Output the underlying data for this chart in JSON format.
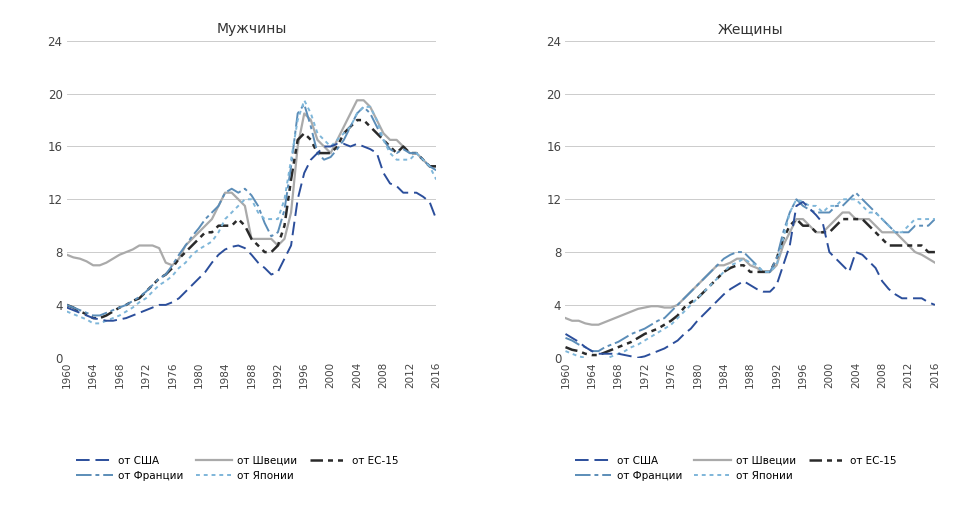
{
  "years": [
    1960,
    1961,
    1962,
    1963,
    1964,
    1965,
    1966,
    1967,
    1968,
    1969,
    1970,
    1971,
    1972,
    1973,
    1974,
    1975,
    1976,
    1977,
    1978,
    1979,
    1980,
    1981,
    1982,
    1983,
    1984,
    1985,
    1986,
    1987,
    1988,
    1989,
    1990,
    1991,
    1992,
    1993,
    1994,
    1995,
    1996,
    1997,
    1998,
    1999,
    2000,
    2001,
    2002,
    2003,
    2004,
    2005,
    2006,
    2007,
    2008,
    2009,
    2010,
    2011,
    2012,
    2013,
    2014,
    2015,
    2016
  ],
  "men": {
    "usa": [
      3.8,
      3.6,
      3.4,
      3.2,
      3.0,
      2.9,
      2.8,
      2.8,
      2.9,
      3.0,
      3.2,
      3.4,
      3.6,
      3.8,
      4.0,
      4.0,
      4.2,
      4.5,
      5.0,
      5.5,
      6.0,
      6.5,
      7.2,
      7.8,
      8.2,
      8.4,
      8.5,
      8.3,
      7.8,
      7.2,
      6.8,
      6.3,
      6.5,
      7.5,
      8.5,
      12.0,
      14.0,
      15.0,
      15.5,
      16.0,
      16.0,
      16.2,
      16.2,
      16.0,
      16.2,
      16.0,
      15.8,
      15.5,
      14.0,
      13.2,
      13.0,
      12.5,
      12.5,
      12.5,
      12.2,
      11.8,
      10.5
    ],
    "france": [
      4.0,
      3.8,
      3.6,
      3.4,
      3.2,
      3.2,
      3.4,
      3.6,
      3.8,
      4.0,
      4.3,
      4.6,
      5.0,
      5.5,
      6.0,
      6.3,
      7.0,
      7.8,
      8.5,
      9.2,
      9.8,
      10.5,
      11.0,
      11.5,
      12.5,
      12.8,
      12.5,
      12.8,
      12.3,
      11.5,
      10.2,
      9.2,
      9.5,
      11.2,
      14.5,
      18.5,
      19.2,
      17.5,
      15.5,
      15.0,
      15.2,
      15.8,
      16.5,
      17.5,
      18.5,
      19.0,
      18.5,
      17.5,
      16.5,
      15.8,
      15.5,
      15.8,
      15.5,
      15.5,
      15.0,
      14.5,
      14.2
    ],
    "sweden": [
      7.8,
      7.6,
      7.5,
      7.3,
      7.0,
      7.0,
      7.2,
      7.5,
      7.8,
      8.0,
      8.2,
      8.5,
      8.5,
      8.5,
      8.3,
      7.2,
      7.0,
      7.5,
      8.5,
      9.0,
      9.5,
      10.0,
      10.5,
      11.5,
      12.5,
      12.5,
      12.0,
      11.5,
      9.0,
      9.0,
      9.0,
      9.0,
      8.5,
      9.0,
      11.0,
      16.0,
      18.5,
      18.0,
      16.5,
      16.0,
      15.5,
      16.5,
      17.5,
      18.5,
      19.5,
      19.5,
      19.0,
      18.0,
      17.0,
      16.5,
      16.5,
      16.0,
      15.5,
      15.5,
      15.0,
      14.5,
      14.5
    ],
    "japan": [
      3.5,
      3.3,
      3.1,
      2.9,
      2.6,
      2.6,
      2.8,
      3.0,
      3.2,
      3.5,
      3.8,
      4.2,
      4.5,
      5.0,
      5.5,
      5.8,
      6.2,
      6.8,
      7.2,
      7.8,
      8.2,
      8.5,
      8.8,
      9.5,
      10.5,
      11.0,
      11.5,
      12.0,
      12.0,
      11.0,
      10.5,
      10.5,
      10.5,
      12.0,
      15.0,
      18.0,
      19.5,
      18.5,
      17.0,
      16.5,
      16.0,
      16.5,
      17.0,
      17.5,
      18.5,
      19.0,
      19.0,
      18.0,
      16.5,
      15.5,
      15.0,
      15.0,
      15.0,
      15.5,
      15.0,
      14.5,
      13.5
    ],
    "eu15": [
      4.0,
      3.8,
      3.5,
      3.3,
      3.0,
      3.0,
      3.2,
      3.5,
      3.8,
      4.0,
      4.3,
      4.5,
      5.0,
      5.5,
      6.0,
      6.3,
      6.8,
      7.5,
      8.0,
      8.5,
      9.0,
      9.5,
      9.5,
      10.0,
      10.0,
      10.0,
      10.5,
      10.0,
      9.0,
      8.5,
      8.0,
      8.0,
      8.5,
      10.0,
      13.5,
      16.5,
      17.0,
      16.5,
      15.5,
      15.5,
      15.5,
      16.0,
      17.0,
      17.5,
      18.0,
      18.0,
      17.5,
      17.0,
      16.5,
      16.0,
      15.5,
      16.0,
      15.5,
      15.5,
      15.0,
      14.5,
      14.5
    ]
  },
  "women": {
    "usa": [
      1.8,
      1.5,
      1.2,
      0.8,
      0.5,
      0.3,
      0.3,
      0.3,
      0.3,
      0.2,
      0.1,
      0.0,
      0.1,
      0.3,
      0.5,
      0.7,
      1.0,
      1.3,
      1.8,
      2.2,
      2.8,
      3.3,
      3.8,
      4.3,
      4.8,
      5.2,
      5.5,
      5.8,
      5.5,
      5.2,
      5.0,
      5.0,
      5.5,
      7.0,
      8.5,
      11.5,
      11.8,
      11.3,
      10.8,
      10.2,
      8.0,
      7.5,
      7.0,
      6.5,
      8.0,
      7.8,
      7.3,
      6.8,
      5.8,
      5.2,
      4.8,
      4.5,
      4.5,
      4.5,
      4.5,
      4.2,
      4.0
    ],
    "france": [
      1.5,
      1.3,
      1.0,
      0.8,
      0.5,
      0.5,
      0.8,
      1.0,
      1.2,
      1.5,
      1.8,
      2.0,
      2.2,
      2.5,
      2.8,
      3.0,
      3.5,
      4.0,
      4.5,
      5.0,
      5.5,
      6.0,
      6.5,
      7.0,
      7.5,
      7.8,
      8.0,
      8.0,
      7.5,
      7.0,
      6.5,
      6.5,
      7.5,
      9.5,
      11.0,
      12.0,
      11.5,
      11.2,
      11.0,
      11.0,
      11.0,
      11.5,
      11.5,
      12.0,
      12.5,
      12.0,
      11.5,
      11.0,
      10.5,
      10.0,
      9.5,
      9.5,
      9.5,
      10.0,
      10.0,
      10.0,
      10.5
    ],
    "sweden": [
      3.0,
      2.8,
      2.8,
      2.6,
      2.5,
      2.5,
      2.7,
      2.9,
      3.1,
      3.3,
      3.5,
      3.7,
      3.8,
      3.9,
      3.9,
      3.8,
      3.8,
      4.0,
      4.5,
      5.0,
      5.5,
      6.0,
      6.5,
      7.0,
      7.0,
      7.2,
      7.5,
      7.5,
      7.0,
      6.8,
      6.5,
      6.5,
      7.0,
      8.5,
      9.5,
      10.5,
      10.5,
      10.0,
      9.5,
      9.5,
      10.0,
      10.5,
      11.0,
      11.0,
      10.5,
      10.5,
      10.5,
      10.0,
      9.5,
      9.5,
      9.5,
      9.0,
      8.5,
      8.0,
      7.8,
      7.5,
      7.2
    ],
    "japan": [
      0.5,
      0.3,
      0.1,
      0.0,
      -0.2,
      -0.3,
      -0.1,
      0.1,
      0.3,
      0.5,
      0.8,
      1.0,
      1.3,
      1.6,
      1.9,
      2.2,
      2.5,
      3.0,
      3.5,
      4.0,
      4.5,
      5.0,
      5.5,
      6.0,
      6.5,
      7.0,
      7.2,
      7.5,
      7.2,
      7.0,
      6.5,
      6.5,
      7.0,
      9.0,
      11.0,
      12.0,
      11.8,
      11.5,
      11.5,
      11.0,
      11.5,
      11.5,
      12.0,
      12.0,
      12.0,
      11.5,
      11.0,
      11.0,
      10.5,
      10.0,
      9.5,
      9.5,
      10.0,
      10.5,
      10.5,
      10.5,
      10.5
    ],
    "eu15": [
      0.8,
      0.6,
      0.5,
      0.3,
      0.2,
      0.2,
      0.4,
      0.6,
      0.8,
      1.0,
      1.2,
      1.5,
      1.8,
      2.0,
      2.2,
      2.5,
      2.8,
      3.2,
      3.8,
      4.2,
      4.5,
      5.0,
      5.5,
      6.0,
      6.5,
      6.8,
      7.0,
      7.0,
      6.5,
      6.5,
      6.5,
      6.5,
      7.5,
      9.0,
      10.0,
      10.5,
      10.0,
      10.0,
      9.5,
      9.5,
      9.5,
      10.0,
      10.5,
      10.5,
      10.5,
      10.5,
      10.0,
      9.5,
      9.0,
      8.5,
      8.5,
      8.5,
      8.5,
      8.5,
      8.5,
      8.0,
      8.0
    ]
  },
  "title_men": "Мужчины",
  "title_women": "Жещины",
  "ylim": [
    0,
    24
  ],
  "yticks": [
    0,
    4,
    8,
    12,
    16,
    20,
    24
  ],
  "xticks": [
    1960,
    1964,
    1968,
    1972,
    1976,
    1980,
    1984,
    1988,
    1992,
    1996,
    2000,
    2004,
    2008,
    2012,
    2016
  ],
  "legend_labels": [
    "от США",
    "от Франции",
    "от Швеции",
    "от Японии",
    "от ЕС-15"
  ],
  "bg_color": "#FFFFFF"
}
